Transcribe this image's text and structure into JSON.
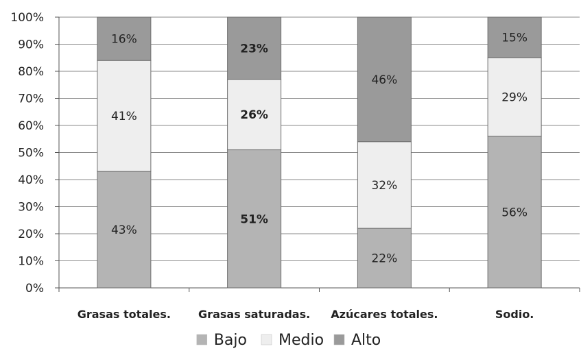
{
  "chart_data": {
    "type": "bar",
    "stacked": true,
    "categories": [
      "Grasas totales.",
      "Grasas saturadas.",
      "Azúcares totales.",
      "Sodio."
    ],
    "series": [
      {
        "name": "Bajo",
        "values": [
          43,
          51,
          22,
          56
        ],
        "labels": [
          "43%",
          "51%",
          "22%",
          "56%"
        ],
        "color": "#b4b4b4"
      },
      {
        "name": "Medio",
        "values": [
          41,
          26,
          32,
          29
        ],
        "labels": [
          "41%",
          "26%",
          "32%",
          "29%"
        ],
        "color": "#eeeeee"
      },
      {
        "name": "Alto",
        "values": [
          16,
          23,
          46,
          15
        ],
        "labels": [
          "16%",
          "23%",
          "46%",
          "15%"
        ],
        "color": "#9a9a9a"
      }
    ],
    "bold_labels": [
      [
        false,
        true,
        false,
        false
      ],
      [
        false,
        true,
        false,
        false
      ],
      [
        false,
        true,
        false,
        false
      ],
      [
        false,
        false,
        false,
        false
      ]
    ],
    "ylim": [
      0,
      100
    ],
    "yticks": [
      "0%",
      "10%",
      "20%",
      "30%",
      "40%",
      "50%",
      "60%",
      "70%",
      "80%",
      "90%",
      "100%"
    ],
    "grid": true,
    "legend_position": "bottom",
    "title": "",
    "xlabel": "",
    "ylabel": ""
  }
}
